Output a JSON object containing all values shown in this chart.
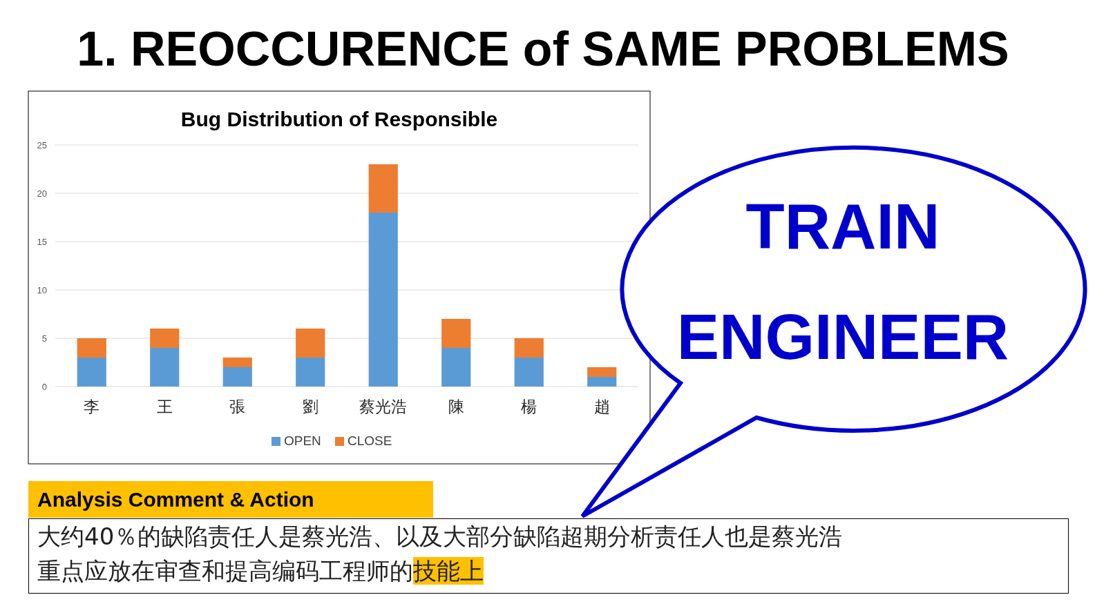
{
  "chart_data": {
    "type": "bar",
    "title": "Bug Distribution of Responsible",
    "categories": [
      "李",
      "王",
      "張",
      "劉",
      "蔡光浩",
      "陳",
      "楊",
      "趙"
    ],
    "series": [
      {
        "name": "OPEN",
        "color": "#5b9bd5",
        "values": [
          3,
          4,
          2,
          3,
          18,
          4,
          3,
          1
        ]
      },
      {
        "name": "CLOSE",
        "color": "#ed7d31",
        "values": [
          2,
          2,
          1,
          3,
          5,
          3,
          2,
          1
        ]
      }
    ],
    "stacked": true,
    "ylim": [
      0,
      25
    ],
    "yticks": [
      0,
      5,
      10,
      15,
      20,
      25
    ],
    "grid": "y",
    "legend": "bottom",
    "annotations": [
      "1. REOCCURENCE of SAME PROBLEMS",
      "TRAIN ENGINEER",
      "Analysis Comment & Action",
      "大约40％的缺陷责任人是蔡光浩、以及大部分缺陷超期分析责任人也是蔡光浩",
      "重点应放在审查和提高编码工程师的",
      "技能上"
    ]
  }
}
